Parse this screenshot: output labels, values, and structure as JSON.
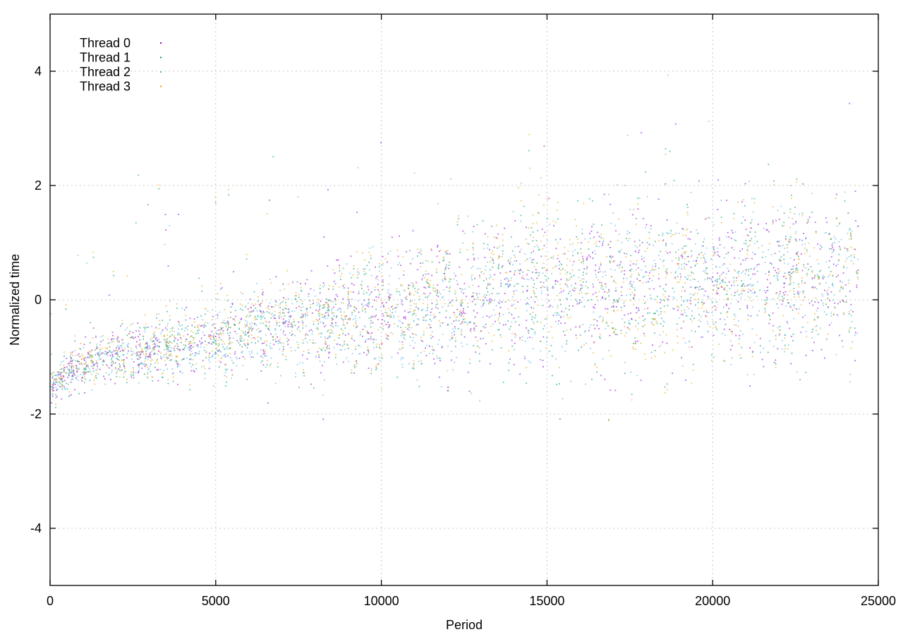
{
  "chart_data": {
    "type": "scatter",
    "title": "",
    "xlabel": "Period",
    "ylabel": "Normalized time",
    "xlim": [
      0,
      25000
    ],
    "ylim": [
      -5,
      5
    ],
    "xticks": [
      0,
      5000,
      10000,
      15000,
      20000,
      25000
    ],
    "yticks": [
      -4,
      -2,
      0,
      2,
      4
    ],
    "grid": true,
    "legend_position": "top-left",
    "x_range_of_points": [
      0,
      24400
    ],
    "series": [
      {
        "name": "Thread 0",
        "color": "#9400d3",
        "profile": [
          [
            0,
            -1.55
          ],
          [
            1000,
            -1.1
          ],
          [
            2500,
            -0.95
          ],
          [
            5000,
            -0.7
          ],
          [
            7500,
            -0.45
          ],
          [
            10000,
            -0.25
          ],
          [
            12500,
            -0.05
          ],
          [
            15000,
            0.25
          ],
          [
            17500,
            0.25
          ],
          [
            20000,
            0.3
          ],
          [
            22500,
            0.35
          ],
          [
            24400,
            0.4
          ]
        ]
      },
      {
        "name": "Thread 1",
        "color": "#009e73",
        "profile": [
          [
            0,
            -1.55
          ],
          [
            1000,
            -1.15
          ],
          [
            2500,
            -0.95
          ],
          [
            5000,
            -0.7
          ],
          [
            7500,
            -0.45
          ],
          [
            10000,
            -0.25
          ],
          [
            12500,
            -0.05
          ],
          [
            15000,
            0.25
          ],
          [
            17500,
            0.2
          ],
          [
            20000,
            0.3
          ],
          [
            22500,
            0.35
          ],
          [
            24400,
            0.35
          ]
        ]
      },
      {
        "name": "Thread 2",
        "color": "#56b4e9",
        "profile": [
          [
            0,
            -1.55
          ],
          [
            1000,
            -1.1
          ],
          [
            2500,
            -0.95
          ],
          [
            5000,
            -0.75
          ],
          [
            7500,
            -0.5
          ],
          [
            10000,
            -0.3
          ],
          [
            12500,
            -0.1
          ],
          [
            15000,
            0.2
          ],
          [
            17500,
            0.2
          ],
          [
            20000,
            0.25
          ],
          [
            22500,
            0.3
          ],
          [
            24400,
            0.3
          ]
        ]
      },
      {
        "name": "Thread 3",
        "color": "#e69f00",
        "profile": [
          [
            0,
            -1.5
          ],
          [
            1000,
            -1.05
          ],
          [
            2500,
            -0.9
          ],
          [
            5000,
            -0.6
          ],
          [
            7500,
            -0.4
          ],
          [
            10000,
            -0.2
          ],
          [
            12500,
            0.0
          ],
          [
            15000,
            0.6
          ],
          [
            17500,
            0.1
          ],
          [
            20000,
            0.2
          ],
          [
            22500,
            0.3
          ],
          [
            24400,
            0.4
          ]
        ]
      }
    ]
  }
}
